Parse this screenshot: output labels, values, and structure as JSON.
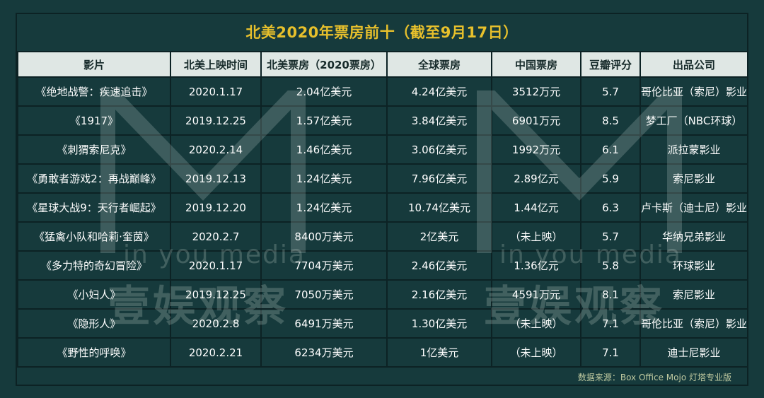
{
  "title": "北美2020年票房前十（截至9月17日）",
  "columns": [
    "影片",
    "北美上映时间",
    "北美票房（2020票房）",
    "全球票房",
    "中国票房",
    "豆瓣评分",
    "出品公司"
  ],
  "rows": [
    [
      "《绝地战警：疾速追击》",
      "2020.1.17",
      "2.04亿美元",
      "4.24亿美元",
      "3512万元",
      "5.7",
      "哥伦比亚（索尼）影业"
    ],
    [
      "《1917》",
      "2019.12.25",
      "1.57亿美元",
      "3.84亿美元",
      "6901万元",
      "8.5",
      "梦工厂（NBC环球）"
    ],
    [
      "《刺猬索尼克》",
      "2020.2.14",
      "1.46亿美元",
      "3.06亿美元",
      "1992万元",
      "6.1",
      "派拉蒙影业"
    ],
    [
      "《勇敢者游戏2：再战巅峰》",
      "2019.12.13",
      "1.24亿美元",
      "7.96亿美元",
      "2.89亿元",
      "5.9",
      "索尼影业"
    ],
    [
      "《星球大战9：天行者崛起》",
      "2019.12.20",
      "1.24亿美元",
      "10.74亿美元",
      "1.44亿元",
      "6.3",
      "卢卡斯（迪士尼）影业"
    ],
    [
      "《猛禽小队和哈莉·奎茵》",
      "2020.2.7",
      "8400万美元",
      "2亿美元",
      "（未上映）",
      "5.7",
      "华纳兄弟影业"
    ],
    [
      "《多力特的奇幻冒险》",
      "2020.1.17",
      "7704万美元",
      "2.46亿美元",
      "1.36亿元",
      "5.8",
      "环球影业"
    ],
    [
      "《小妇人》",
      "2019.12.25",
      "7050万美元",
      "2.16亿美元",
      "4591万元",
      "8.1",
      "索尼影业"
    ],
    [
      "《隐形人》",
      "2020.2.8",
      "6491万美元",
      "1.30亿美元",
      "（未上映）",
      "7.1",
      "哥伦比亚（索尼）影业"
    ],
    [
      "《野性的呼唤》",
      "2020.2.21",
      "6234万美元",
      "1亿美元",
      "（未上映）",
      "7.1",
      "迪士尼影业"
    ]
  ],
  "source": "数据来源：Box Office Mojo 灯塔专业版",
  "watermark": {
    "latin": "in you media",
    "chinese": "壹娱观察"
  },
  "colors": {
    "background": "#163a3c",
    "title": "#e7c02c",
    "header_bg": "#dfe7e4",
    "grid_line": "#0c2224"
  }
}
